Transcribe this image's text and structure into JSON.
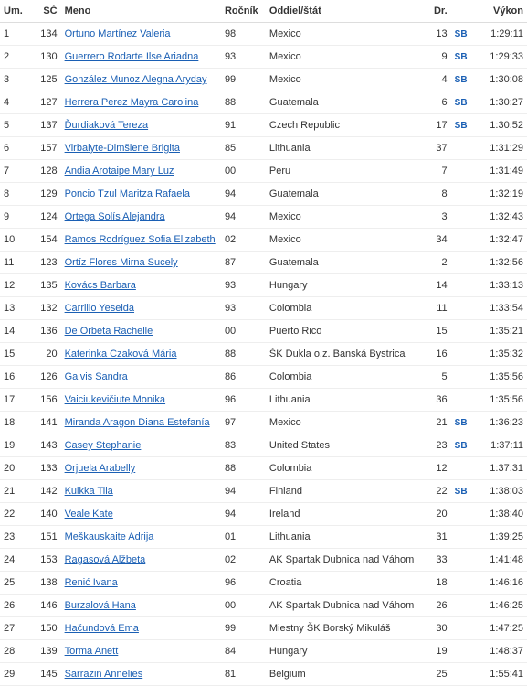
{
  "headers": {
    "um": "Um.",
    "sc": "SČ",
    "meno": "Meno",
    "rocnik": "Ročník",
    "oddiel": "Oddiel/štát",
    "dr": "Dr.",
    "vykon": "Výkon"
  },
  "badges": {
    "sb": "SB"
  },
  "colors": {
    "link": "#1a5fb4",
    "text": "#333333",
    "border": "#eeeeee",
    "header_border": "#dddddd",
    "background": "#ffffff"
  },
  "rows": [
    {
      "um": "1",
      "sc": "134",
      "name": "Ortuno Martínez Valeria",
      "rocnik": "98",
      "oddiel": "Mexico",
      "dr": "13",
      "badge": "SB",
      "vykon": "1:29:11"
    },
    {
      "um": "2",
      "sc": "130",
      "name": "Guerrero Rodarte Ilse Ariadna",
      "rocnik": "93",
      "oddiel": "Mexico",
      "dr": "9",
      "badge": "SB",
      "vykon": "1:29:33"
    },
    {
      "um": "3",
      "sc": "125",
      "name": "González Munoz Alegna Aryday",
      "rocnik": "99",
      "oddiel": "Mexico",
      "dr": "4",
      "badge": "SB",
      "vykon": "1:30:08"
    },
    {
      "um": "4",
      "sc": "127",
      "name": "Herrera Perez Mayra Carolina",
      "rocnik": "88",
      "oddiel": "Guatemala",
      "dr": "6",
      "badge": "SB",
      "vykon": "1:30:27"
    },
    {
      "um": "5",
      "sc": "137",
      "name": "Ďurdiaková Tereza",
      "rocnik": "91",
      "oddiel": "Czech Republic",
      "dr": "17",
      "badge": "SB",
      "vykon": "1:30:52"
    },
    {
      "um": "6",
      "sc": "157",
      "name": "Virbalyte-Dimšiene Brigita",
      "rocnik": "85",
      "oddiel": "Lithuania",
      "dr": "37",
      "badge": "",
      "vykon": "1:31:29"
    },
    {
      "um": "7",
      "sc": "128",
      "name": "Andia Arotaipe Mary Luz",
      "rocnik": "00",
      "oddiel": "Peru",
      "dr": "7",
      "badge": "",
      "vykon": "1:31:49"
    },
    {
      "um": "8",
      "sc": "129",
      "name": "Poncio Tzul Maritza Rafaela",
      "rocnik": "94",
      "oddiel": "Guatemala",
      "dr": "8",
      "badge": "",
      "vykon": "1:32:19"
    },
    {
      "um": "9",
      "sc": "124",
      "name": "Ortega Solís Alejandra",
      "rocnik": "94",
      "oddiel": "Mexico",
      "dr": "3",
      "badge": "",
      "vykon": "1:32:43"
    },
    {
      "um": "10",
      "sc": "154",
      "name": "Ramos Rodríguez Sofia Elizabeth",
      "rocnik": "02",
      "oddiel": "Mexico",
      "dr": "34",
      "badge": "",
      "vykon": "1:32:47"
    },
    {
      "um": "11",
      "sc": "123",
      "name": "Ortíz Flores Mirna Sucely",
      "rocnik": "87",
      "oddiel": "Guatemala",
      "dr": "2",
      "badge": "",
      "vykon": "1:32:56"
    },
    {
      "um": "12",
      "sc": "135",
      "name": "Kovács Barbara",
      "rocnik": "93",
      "oddiel": "Hungary",
      "dr": "14",
      "badge": "",
      "vykon": "1:33:13"
    },
    {
      "um": "13",
      "sc": "132",
      "name": "Carrillo Yeseida",
      "rocnik": "93",
      "oddiel": "Colombia",
      "dr": "11",
      "badge": "",
      "vykon": "1:33:54"
    },
    {
      "um": "14",
      "sc": "136",
      "name": "De Orbeta Rachelle",
      "rocnik": "00",
      "oddiel": "Puerto Rico",
      "dr": "15",
      "badge": "",
      "vykon": "1:35:21"
    },
    {
      "um": "15",
      "sc": "20",
      "name": "Katerinka Czaková Mária",
      "rocnik": "88",
      "oddiel": "ŠK Dukla o.z. Banská Bystrica",
      "dr": "16",
      "badge": "",
      "vykon": "1:35:32"
    },
    {
      "um": "16",
      "sc": "126",
      "name": "Galvis Sandra",
      "rocnik": "86",
      "oddiel": "Colombia",
      "dr": "5",
      "badge": "",
      "vykon": "1:35:56"
    },
    {
      "um": "17",
      "sc": "156",
      "name": "Vaiciukevičiute Monika",
      "rocnik": "96",
      "oddiel": "Lithuania",
      "dr": "36",
      "badge": "",
      "vykon": "1:35:56"
    },
    {
      "um": "18",
      "sc": "141",
      "name": "Miranda Aragon Diana Estefanía",
      "rocnik": "97",
      "oddiel": "Mexico",
      "dr": "21",
      "badge": "SB",
      "vykon": "1:36:23"
    },
    {
      "um": "19",
      "sc": "143",
      "name": "Casey Stephanie",
      "rocnik": "83",
      "oddiel": "United States",
      "dr": "23",
      "badge": "SB",
      "vykon": "1:37:11"
    },
    {
      "um": "20",
      "sc": "133",
      "name": "Orjuela Arabelly",
      "rocnik": "88",
      "oddiel": "Colombia",
      "dr": "12",
      "badge": "",
      "vykon": "1:37:31"
    },
    {
      "um": "21",
      "sc": "142",
      "name": "Kuikka Tiia",
      "rocnik": "94",
      "oddiel": "Finland",
      "dr": "22",
      "badge": "SB",
      "vykon": "1:38:03"
    },
    {
      "um": "22",
      "sc": "140",
      "name": "Veale Kate",
      "rocnik": "94",
      "oddiel": "Ireland",
      "dr": "20",
      "badge": "",
      "vykon": "1:38:40"
    },
    {
      "um": "23",
      "sc": "151",
      "name": "Meškauskaite Adrija",
      "rocnik": "01",
      "oddiel": "Lithuania",
      "dr": "31",
      "badge": "",
      "vykon": "1:39:25"
    },
    {
      "um": "24",
      "sc": "153",
      "name": "Ragasová Alžbeta",
      "rocnik": "02",
      "oddiel": "AK Spartak Dubnica nad Váhom",
      "dr": "33",
      "badge": "",
      "vykon": "1:41:48"
    },
    {
      "um": "25",
      "sc": "138",
      "name": "Renić Ivana",
      "rocnik": "96",
      "oddiel": "Croatia",
      "dr": "18",
      "badge": "",
      "vykon": "1:46:16"
    },
    {
      "um": "26",
      "sc": "146",
      "name": "Burzalová Hana",
      "rocnik": "00",
      "oddiel": "AK Spartak Dubnica nad Váhom",
      "dr": "26",
      "badge": "",
      "vykon": "1:46:25"
    },
    {
      "um": "27",
      "sc": "150",
      "name": "Hačundová Ema",
      "rocnik": "99",
      "oddiel": "Miestny ŠK Borský Mikuláš",
      "dr": "30",
      "badge": "",
      "vykon": "1:47:25"
    },
    {
      "um": "28",
      "sc": "139",
      "name": "Torma Anett",
      "rocnik": "84",
      "oddiel": "Hungary",
      "dr": "19",
      "badge": "",
      "vykon": "1:48:37"
    },
    {
      "um": "29",
      "sc": "145",
      "name": "Sarrazin Annelies",
      "rocnik": "81",
      "oddiel": "Belgium",
      "dr": "25",
      "badge": "",
      "vykon": "1:55:41"
    }
  ]
}
